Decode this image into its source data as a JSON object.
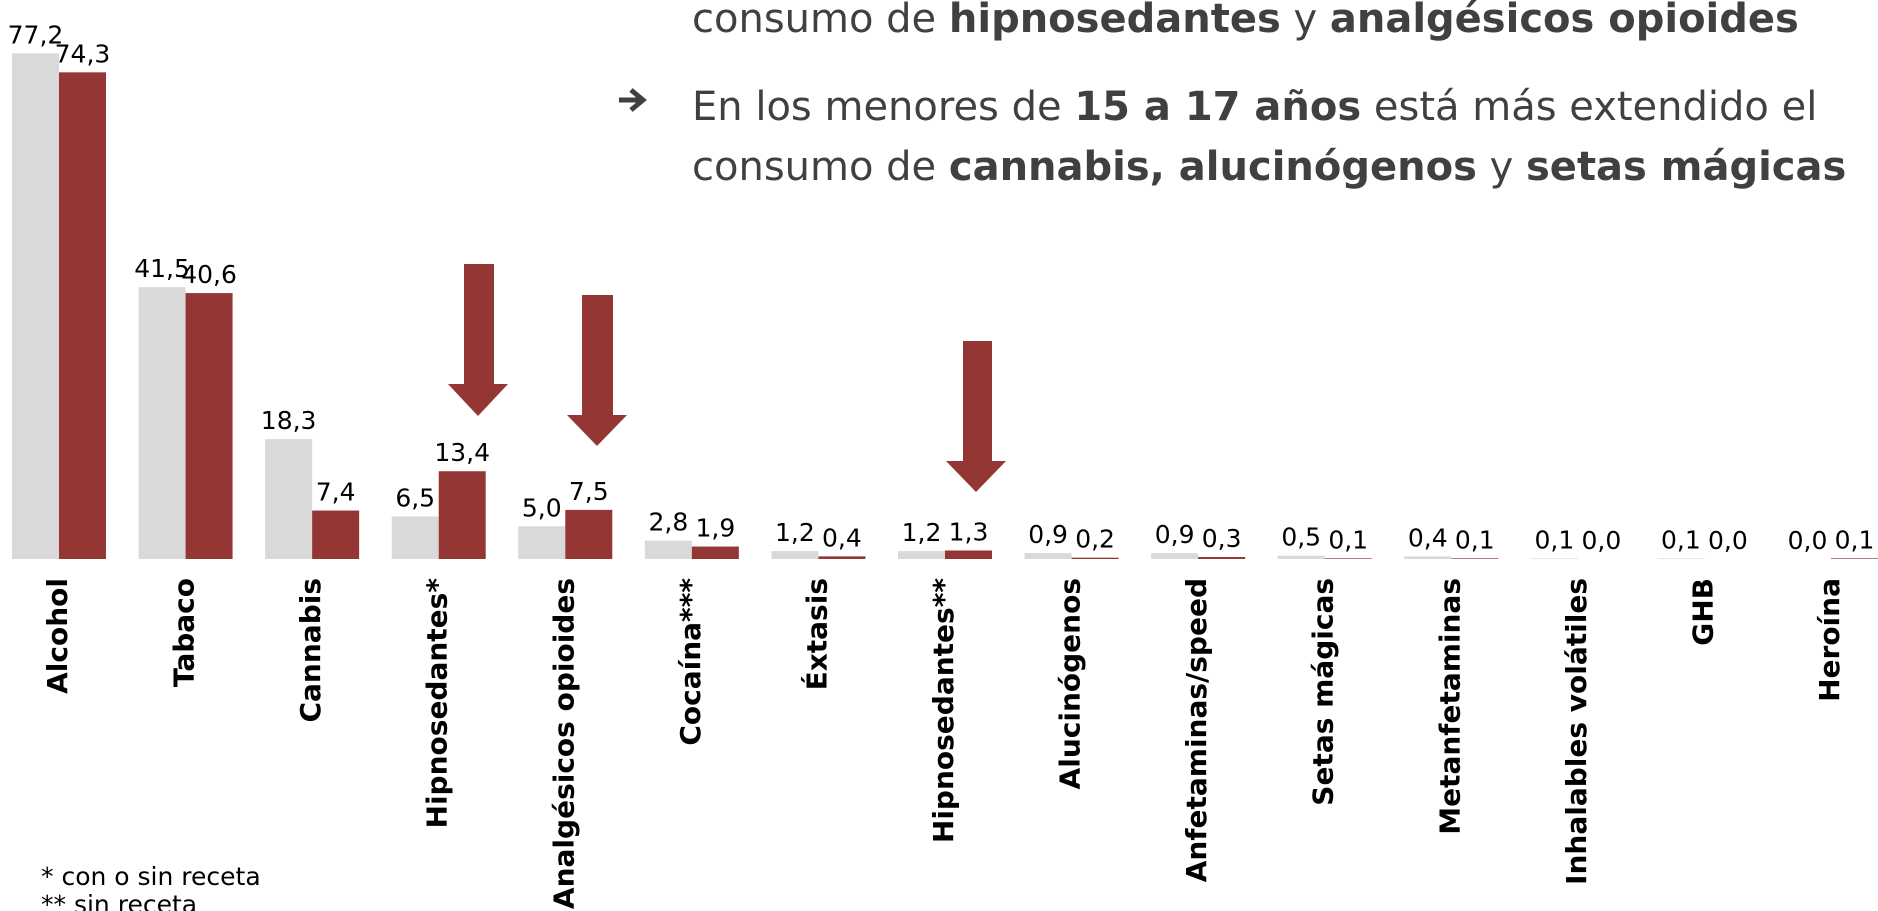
{
  "chart_data": {
    "type": "bar",
    "bullets": [
      {
        "lines": [
          [
            {
              "text": "consumo de "
            },
            {
              "text": "hipnosedantes",
              "bold": true
            },
            {
              "text": " y "
            },
            {
              "text": "analgésicos opioides",
              "bold": true
            }
          ]
        ]
      },
      {
        "lines": [
          [
            {
              "text": "En los menores de "
            },
            {
              "text": "15 a 17 años",
              "bold": true
            },
            {
              "text": " está más extendido el"
            }
          ],
          [
            {
              "text": "consumo de "
            },
            {
              "text": "cannabis, alucinógenos",
              "bold": true
            },
            {
              "text": " y "
            },
            {
              "text": "setas mágicas",
              "bold": true
            }
          ]
        ]
      }
    ],
    "categories": [
      "Alcohol",
      "Tabaco",
      "Cannabis",
      "Hipnosedantes*",
      "Analgésicos opioides",
      "Cocaína***",
      "Éxtasis",
      "Hipnosedantes**",
      "Alucinógenos",
      "Anfetaminas/speed",
      "Setas mágicas",
      "Metanfetaminas",
      "Inhalables volátiles",
      "GHB",
      "Heroína"
    ],
    "series": [
      {
        "color": "#d9d9d9",
        "values": [
          77.2,
          41.5,
          18.3,
          6.5,
          5.0,
          2.8,
          1.2,
          1.2,
          0.9,
          0.9,
          0.5,
          0.4,
          0.1,
          0.1,
          0.0
        ],
        "value_labels": [
          "77,2",
          "41,5",
          "18,3",
          "6,5",
          "5,0",
          "2,8",
          "1,2",
          "1,2",
          "0,9",
          "0,9",
          "0,5",
          "0,4",
          "0,1",
          "0,1",
          "0,0"
        ]
      },
      {
        "color": "#943634",
        "values": [
          74.3,
          40.6,
          7.4,
          13.4,
          7.5,
          1.9,
          0.4,
          1.3,
          0.2,
          0.3,
          0.1,
          0.1,
          0.0,
          0.0,
          0.1
        ],
        "value_labels": [
          "74,3",
          "40,6",
          "7,4",
          "13,4",
          "7,5",
          "1,9",
          "0,4",
          "1,3",
          "0,2",
          "0,3",
          "0,1",
          "0,1",
          "0,0",
          "0,0",
          "0,1"
        ]
      }
    ],
    "ylim": [
      0,
      80
    ],
    "footnotes": [
      "* con o sin receta",
      "** sin receta"
    ]
  }
}
